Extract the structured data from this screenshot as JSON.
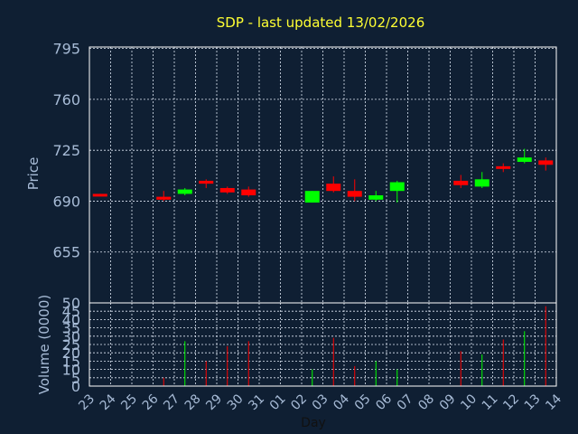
{
  "chart_data": [
    {
      "type": "candlestick",
      "title": "SDP - last updated 13/02/2026",
      "ylabel": "Price",
      "ylim": [
        620,
        796
      ],
      "yticks": [
        795,
        760,
        725,
        690,
        655
      ],
      "grid": true,
      "colors": {
        "up": "#00ff00",
        "down": "#ff0000"
      },
      "x": [
        "23",
        "24",
        "25",
        "26",
        "27",
        "28",
        "29",
        "30",
        "31",
        "01",
        "02",
        "03",
        "04",
        "05",
        "06",
        "07",
        "08",
        "09",
        "10",
        "11",
        "12",
        "13",
        "14"
      ],
      "points": [
        {
          "day": "23",
          "slot": 0,
          "open": 695,
          "close": 694,
          "high": 695,
          "low": 694
        },
        {
          "day": "26",
          "slot": 3,
          "open": 693,
          "close": 691,
          "high": 697,
          "low": 690
        },
        {
          "day": "27",
          "slot": 4,
          "open": 695,
          "close": 698,
          "high": 699,
          "low": 694
        },
        {
          "day": "28",
          "slot": 5,
          "open": 704,
          "close": 702,
          "high": 705,
          "low": 699
        },
        {
          "day": "29",
          "slot": 6,
          "open": 699,
          "close": 696,
          "high": 700,
          "low": 695
        },
        {
          "day": "30",
          "slot": 7,
          "open": 698,
          "close": 694,
          "high": 700,
          "low": 693
        },
        {
          "day": "02",
          "slot": 10,
          "open": 689,
          "close": 697,
          "high": 697,
          "low": 689
        },
        {
          "day": "03",
          "slot": 11,
          "open": 702,
          "close": 697,
          "high": 707,
          "low": 696
        },
        {
          "day": "04",
          "slot": 12,
          "open": 697,
          "close": 693,
          "high": 705,
          "low": 690
        },
        {
          "day": "05",
          "slot": 13,
          "open": 691,
          "close": 694,
          "high": 697,
          "low": 690
        },
        {
          "day": "06",
          "slot": 14,
          "open": 697,
          "close": 703,
          "high": 704,
          "low": 689
        },
        {
          "day": "09",
          "slot": 17,
          "open": 704,
          "close": 701,
          "high": 708,
          "low": 699
        },
        {
          "day": "10",
          "slot": 18,
          "open": 700,
          "close": 705,
          "high": 710,
          "low": 699
        },
        {
          "day": "11",
          "slot": 19,
          "open": 714,
          "close": 713,
          "high": 716,
          "low": 710
        },
        {
          "day": "12",
          "slot": 20,
          "open": 717,
          "close": 720,
          "high": 726,
          "low": 716
        },
        {
          "day": "13",
          "slot": 21,
          "open": 718,
          "close": 715,
          "high": 720,
          "low": 711
        }
      ]
    },
    {
      "type": "bar",
      "ylabel": "Volume (0000)",
      "xlabel": "Day",
      "ylim": [
        0,
        50
      ],
      "yticks": [
        0,
        5,
        10,
        15,
        20,
        25,
        30,
        35,
        40,
        45,
        50
      ],
      "grid": true,
      "points": [
        {
          "day": "26",
          "slot": 3,
          "value": 5,
          "color": "#ff0000"
        },
        {
          "day": "27",
          "slot": 4,
          "value": 27,
          "color": "#00ff00"
        },
        {
          "day": "28",
          "slot": 5,
          "value": 15,
          "color": "#ff0000"
        },
        {
          "day": "29",
          "slot": 6,
          "value": 24,
          "color": "#ff0000"
        },
        {
          "day": "30",
          "slot": 7,
          "value": 27,
          "color": "#ff0000"
        },
        {
          "day": "02",
          "slot": 10,
          "value": 10,
          "color": "#00ff00"
        },
        {
          "day": "03",
          "slot": 11,
          "value": 29,
          "color": "#ff0000"
        },
        {
          "day": "04",
          "slot": 12,
          "value": 12,
          "color": "#ff0000"
        },
        {
          "day": "05",
          "slot": 13,
          "value": 15,
          "color": "#00ff00"
        },
        {
          "day": "06",
          "slot": 14,
          "value": 10,
          "color": "#00ff00"
        },
        {
          "day": "09",
          "slot": 17,
          "value": 21,
          "color": "#ff0000"
        },
        {
          "day": "10",
          "slot": 18,
          "value": 19,
          "color": "#00ff00"
        },
        {
          "day": "11",
          "slot": 19,
          "value": 28,
          "color": "#ff0000"
        },
        {
          "day": "12",
          "slot": 20,
          "value": 33,
          "color": "#00ff00"
        },
        {
          "day": "13",
          "slot": 21,
          "value": 48,
          "color": "#ff0000"
        }
      ]
    }
  ]
}
